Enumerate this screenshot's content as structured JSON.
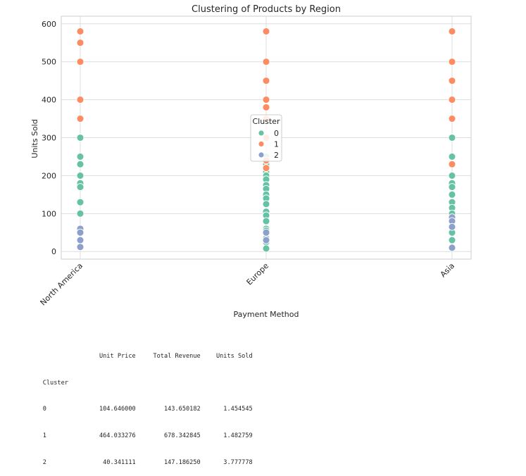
{
  "chart_data": {
    "type": "scatter",
    "title": "Clustering of Products by Region",
    "xlabel": "Payment Method",
    "ylabel": "Units Sold",
    "categories": [
      "North America",
      "Europe",
      "Asia"
    ],
    "ylim": [
      -20,
      620
    ],
    "yticks": [
      0,
      100,
      200,
      300,
      400,
      500,
      600
    ],
    "grid": true,
    "legend": {
      "title": "Cluster",
      "placement": "center",
      "entries": [
        {
          "label": "0",
          "color": "#66c2a5"
        },
        {
          "label": "1",
          "color": "#fc8d62"
        },
        {
          "label": "2",
          "color": "#8da0cb"
        }
      ]
    },
    "series": [
      {
        "name": "0",
        "color": "#66c2a5",
        "points": [
          [
            "North America",
            300
          ],
          [
            "North America",
            250
          ],
          [
            "North America",
            230
          ],
          [
            "North America",
            200
          ],
          [
            "North America",
            180
          ],
          [
            "North America",
            170
          ],
          [
            "North America",
            130
          ],
          [
            "North America",
            100
          ],
          [
            "Europe",
            300
          ],
          [
            "Europe",
            250
          ],
          [
            "Europe",
            230
          ],
          [
            "Europe",
            210
          ],
          [
            "Europe",
            200
          ],
          [
            "Europe",
            190
          ],
          [
            "Europe",
            175
          ],
          [
            "Europe",
            165
          ],
          [
            "Europe",
            150
          ],
          [
            "Europe",
            140
          ],
          [
            "Europe",
            125
          ],
          [
            "Europe",
            105
          ],
          [
            "Europe",
            95
          ],
          [
            "Europe",
            80
          ],
          [
            "Europe",
            60
          ],
          [
            "Europe",
            55
          ],
          [
            "Europe",
            35
          ],
          [
            "Europe",
            25
          ],
          [
            "Europe",
            8
          ],
          [
            "Asia",
            300
          ],
          [
            "Asia",
            250
          ],
          [
            "Asia",
            230
          ],
          [
            "Asia",
            200
          ],
          [
            "Asia",
            180
          ],
          [
            "Asia",
            170
          ],
          [
            "Asia",
            150
          ],
          [
            "Asia",
            130
          ],
          [
            "Asia",
            115
          ],
          [
            "Asia",
            100
          ],
          [
            "Asia",
            50
          ],
          [
            "Asia",
            30
          ]
        ]
      },
      {
        "name": "1",
        "color": "#fc8d62",
        "points": [
          [
            "North America",
            580
          ],
          [
            "North America",
            550
          ],
          [
            "North America",
            500
          ],
          [
            "North America",
            400
          ],
          [
            "North America",
            350
          ],
          [
            "Europe",
            580
          ],
          [
            "Europe",
            500
          ],
          [
            "Europe",
            450
          ],
          [
            "Europe",
            400
          ],
          [
            "Europe",
            380
          ],
          [
            "Europe",
            350
          ],
          [
            "Europe",
            300
          ],
          [
            "Europe",
            240
          ],
          [
            "Europe",
            220
          ],
          [
            "Asia",
            580
          ],
          [
            "Asia",
            500
          ],
          [
            "Asia",
            450
          ],
          [
            "Asia",
            400
          ],
          [
            "Asia",
            350
          ],
          [
            "Asia",
            230
          ]
        ]
      },
      {
        "name": "2",
        "color": "#8da0cb",
        "points": [
          [
            "North America",
            60
          ],
          [
            "North America",
            50
          ],
          [
            "North America",
            30
          ],
          [
            "North America",
            12
          ],
          [
            "Europe",
            50
          ],
          [
            "Europe",
            30
          ],
          [
            "Asia",
            90
          ],
          [
            "Asia",
            80
          ],
          [
            "Asia",
            65
          ],
          [
            "Asia",
            10
          ]
        ]
      }
    ]
  },
  "summary_table": {
    "index_name": "Cluster",
    "columns": [
      "Unit Price",
      "Total Revenue",
      "Units Sold"
    ],
    "rows": [
      {
        "index": "0",
        "values": [
          "104.646000",
          "143.650182",
          "1.454545"
        ]
      },
      {
        "index": "1",
        "values": [
          "464.033276",
          "678.342845",
          "1.482759"
        ]
      },
      {
        "index": "2",
        "values": [
          "40.341111",
          "147.186250",
          "3.777778"
        ]
      }
    ]
  }
}
